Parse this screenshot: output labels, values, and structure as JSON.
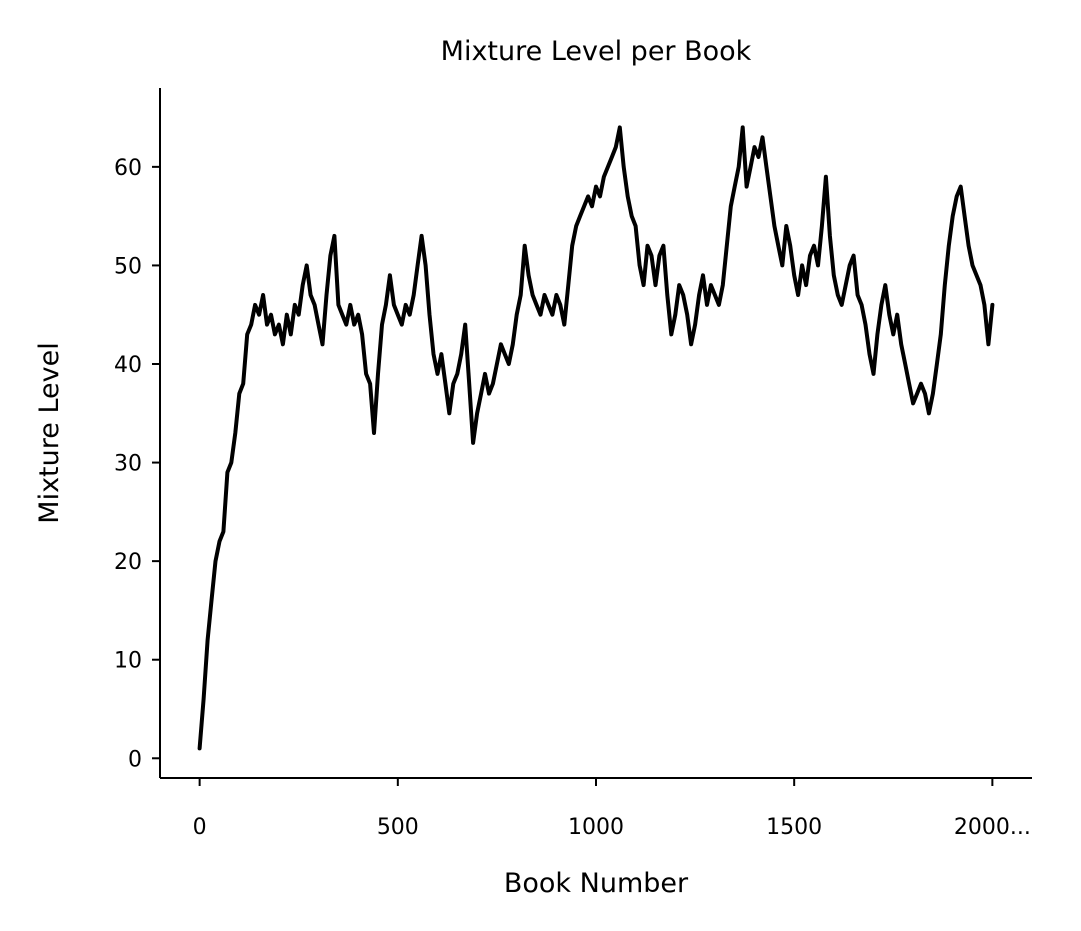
{
  "chart_data": {
    "type": "line",
    "title": "Mixture Level per Book",
    "xlabel": "Book Number",
    "ylabel": "Mixture Level",
    "xlim": [
      -100,
      2100
    ],
    "ylim": [
      -2,
      68
    ],
    "xticks": [
      0,
      500,
      1000,
      1500,
      2000
    ],
    "xtick_labels": [
      "0",
      "500",
      "1000",
      "1500",
      "2000..."
    ],
    "yticks": [
      0,
      10,
      20,
      30,
      40,
      50,
      60
    ],
    "ytick_labels": [
      "0",
      "10",
      "20",
      "30",
      "40",
      "50",
      "60"
    ],
    "grid": false,
    "series": [
      {
        "color": "#000000",
        "points": [
          [
            0,
            1
          ],
          [
            10,
            6
          ],
          [
            20,
            12
          ],
          [
            30,
            16
          ],
          [
            40,
            20
          ],
          [
            50,
            22
          ],
          [
            60,
            23
          ],
          [
            70,
            29
          ],
          [
            80,
            30
          ],
          [
            90,
            33
          ],
          [
            100,
            37
          ],
          [
            110,
            38
          ],
          [
            120,
            43
          ],
          [
            130,
            44
          ],
          [
            140,
            46
          ],
          [
            150,
            45
          ],
          [
            160,
            47
          ],
          [
            170,
            44
          ],
          [
            180,
            45
          ],
          [
            190,
            43
          ],
          [
            200,
            44
          ],
          [
            210,
            42
          ],
          [
            220,
            45
          ],
          [
            230,
            43
          ],
          [
            240,
            46
          ],
          [
            250,
            45
          ],
          [
            260,
            48
          ],
          [
            270,
            50
          ],
          [
            280,
            47
          ],
          [
            290,
            46
          ],
          [
            300,
            44
          ],
          [
            310,
            42
          ],
          [
            320,
            47
          ],
          [
            330,
            51
          ],
          [
            340,
            53
          ],
          [
            350,
            46
          ],
          [
            360,
            45
          ],
          [
            370,
            44
          ],
          [
            380,
            46
          ],
          [
            390,
            44
          ],
          [
            400,
            45
          ],
          [
            410,
            43
          ],
          [
            420,
            39
          ],
          [
            430,
            38
          ],
          [
            440,
            33
          ],
          [
            450,
            39
          ],
          [
            460,
            44
          ],
          [
            470,
            46
          ],
          [
            480,
            49
          ],
          [
            490,
            46
          ],
          [
            500,
            45
          ],
          [
            510,
            44
          ],
          [
            520,
            46
          ],
          [
            530,
            45
          ],
          [
            540,
            47
          ],
          [
            550,
            50
          ],
          [
            560,
            53
          ],
          [
            570,
            50
          ],
          [
            580,
            45
          ],
          [
            590,
            41
          ],
          [
            600,
            39
          ],
          [
            610,
            41
          ],
          [
            620,
            38
          ],
          [
            630,
            35
          ],
          [
            640,
            38
          ],
          [
            650,
            39
          ],
          [
            660,
            41
          ],
          [
            670,
            44
          ],
          [
            680,
            38
          ],
          [
            690,
            32
          ],
          [
            700,
            35
          ],
          [
            710,
            37
          ],
          [
            720,
            39
          ],
          [
            730,
            37
          ],
          [
            740,
            38
          ],
          [
            750,
            40
          ],
          [
            760,
            42
          ],
          [
            770,
            41
          ],
          [
            780,
            40
          ],
          [
            790,
            42
          ],
          [
            800,
            45
          ],
          [
            810,
            47
          ],
          [
            820,
            52
          ],
          [
            830,
            49
          ],
          [
            840,
            47
          ],
          [
            850,
            46
          ],
          [
            860,
            45
          ],
          [
            870,
            47
          ],
          [
            880,
            46
          ],
          [
            890,
            45
          ],
          [
            900,
            47
          ],
          [
            910,
            46
          ],
          [
            920,
            44
          ],
          [
            930,
            48
          ],
          [
            940,
            52
          ],
          [
            950,
            54
          ],
          [
            960,
            55
          ],
          [
            970,
            56
          ],
          [
            980,
            57
          ],
          [
            990,
            56
          ],
          [
            1000,
            58
          ],
          [
            1010,
            57
          ],
          [
            1020,
            59
          ],
          [
            1030,
            60
          ],
          [
            1040,
            61
          ],
          [
            1050,
            62
          ],
          [
            1060,
            64
          ],
          [
            1070,
            60
          ],
          [
            1080,
            57
          ],
          [
            1090,
            55
          ],
          [
            1100,
            54
          ],
          [
            1110,
            50
          ],
          [
            1120,
            48
          ],
          [
            1130,
            52
          ],
          [
            1140,
            51
          ],
          [
            1150,
            48
          ],
          [
            1160,
            51
          ],
          [
            1170,
            52
          ],
          [
            1180,
            47
          ],
          [
            1190,
            43
          ],
          [
            1200,
            45
          ],
          [
            1210,
            48
          ],
          [
            1220,
            47
          ],
          [
            1230,
            45
          ],
          [
            1240,
            42
          ],
          [
            1250,
            44
          ],
          [
            1260,
            47
          ],
          [
            1270,
            49
          ],
          [
            1280,
            46
          ],
          [
            1290,
            48
          ],
          [
            1300,
            47
          ],
          [
            1310,
            46
          ],
          [
            1320,
            48
          ],
          [
            1330,
            52
          ],
          [
            1340,
            56
          ],
          [
            1350,
            58
          ],
          [
            1360,
            60
          ],
          [
            1370,
            64
          ],
          [
            1380,
            58
          ],
          [
            1390,
            60
          ],
          [
            1400,
            62
          ],
          [
            1410,
            61
          ],
          [
            1420,
            63
          ],
          [
            1430,
            60
          ],
          [
            1440,
            57
          ],
          [
            1450,
            54
          ],
          [
            1460,
            52
          ],
          [
            1470,
            50
          ],
          [
            1480,
            54
          ],
          [
            1490,
            52
          ],
          [
            1500,
            49
          ],
          [
            1510,
            47
          ],
          [
            1520,
            50
          ],
          [
            1530,
            48
          ],
          [
            1540,
            51
          ],
          [
            1550,
            52
          ],
          [
            1560,
            50
          ],
          [
            1570,
            54
          ],
          [
            1580,
            59
          ],
          [
            1590,
            53
          ],
          [
            1600,
            49
          ],
          [
            1610,
            47
          ],
          [
            1620,
            46
          ],
          [
            1630,
            48
          ],
          [
            1640,
            50
          ],
          [
            1650,
            51
          ],
          [
            1660,
            47
          ],
          [
            1670,
            46
          ],
          [
            1680,
            44
          ],
          [
            1690,
            41
          ],
          [
            1700,
            39
          ],
          [
            1710,
            43
          ],
          [
            1720,
            46
          ],
          [
            1730,
            48
          ],
          [
            1740,
            45
          ],
          [
            1750,
            43
          ],
          [
            1760,
            45
          ],
          [
            1770,
            42
          ],
          [
            1780,
            40
          ],
          [
            1790,
            38
          ],
          [
            1800,
            36
          ],
          [
            1810,
            37
          ],
          [
            1820,
            38
          ],
          [
            1830,
            37
          ],
          [
            1840,
            35
          ],
          [
            1850,
            37
          ],
          [
            1860,
            40
          ],
          [
            1870,
            43
          ],
          [
            1880,
            48
          ],
          [
            1890,
            52
          ],
          [
            1900,
            55
          ],
          [
            1910,
            57
          ],
          [
            1920,
            58
          ],
          [
            1930,
            55
          ],
          [
            1940,
            52
          ],
          [
            1950,
            50
          ],
          [
            1960,
            49
          ],
          [
            1970,
            48
          ],
          [
            1980,
            46
          ],
          [
            1990,
            42
          ],
          [
            2000,
            46
          ]
        ]
      }
    ]
  }
}
